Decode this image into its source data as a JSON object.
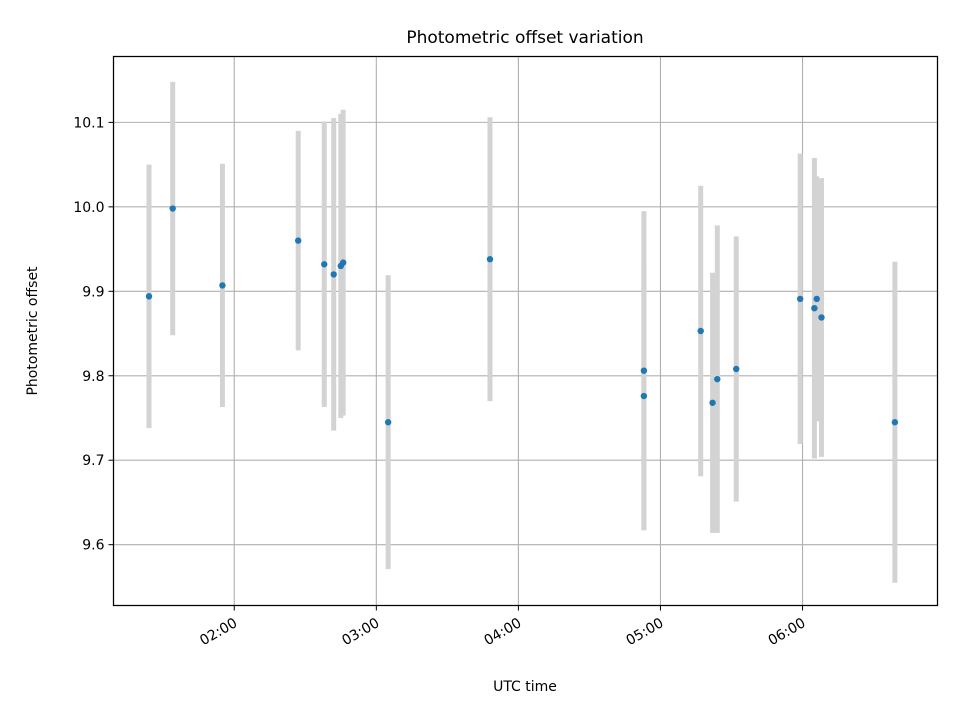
{
  "chart_data": {
    "type": "scatter",
    "title": "Photometric offset variation",
    "xlabel": "UTC time",
    "ylabel": "Photometric offset",
    "x_unit": "UTC time (HH:MM)",
    "xlim": [
      "01:09",
      "06:57"
    ],
    "ylim": [
      9.528,
      10.178
    ],
    "x_ticks": [
      "02:00",
      "03:00",
      "04:00",
      "05:00",
      "06:00"
    ],
    "y_ticks": [
      "9.6",
      "9.7",
      "9.8",
      "9.9",
      "10.0",
      "10.1"
    ],
    "grid": true,
    "legend": "none",
    "colors": {
      "points": "#1f77b4",
      "error_bars": "#d3d3d3",
      "grid": "#b0b0b0",
      "axes": "#000000"
    },
    "series": [
      {
        "points": [
          {
            "x": "01:24",
            "y": 9.894,
            "err": 0.156
          },
          {
            "x": "01:34",
            "y": 9.998,
            "err": 0.15
          },
          {
            "x": "01:55",
            "y": 9.907,
            "err": 0.144
          },
          {
            "x": "02:27",
            "y": 9.96,
            "err": 0.13
          },
          {
            "x": "02:38",
            "y": 9.932,
            "err": 0.169
          },
          {
            "x": "02:42",
            "y": 9.92,
            "err": 0.185
          },
          {
            "x": "02:45",
            "y": 9.93,
            "err": 0.18
          },
          {
            "x": "02:46",
            "y": 9.934,
            "err": 0.181
          },
          {
            "x": "03:05",
            "y": 9.745,
            "err": 0.174
          },
          {
            "x": "03:48",
            "y": 9.938,
            "err": 0.168
          },
          {
            "x": "04:53",
            "y": 9.806,
            "err": 0.189
          },
          {
            "x": "04:53",
            "y": 9.776,
            "err": 0.157
          },
          {
            "x": "05:17",
            "y": 9.853,
            "err": 0.172
          },
          {
            "x": "05:22",
            "y": 9.768,
            "err": 0.154
          },
          {
            "x": "05:24",
            "y": 9.796,
            "err": 0.182
          },
          {
            "x": "05:32",
            "y": 9.808,
            "err": 0.157
          },
          {
            "x": "05:59",
            "y": 9.891,
            "err": 0.172
          },
          {
            "x": "06:05",
            "y": 9.88,
            "err": 0.178
          },
          {
            "x": "06:06",
            "y": 9.891,
            "err": 0.145
          },
          {
            "x": "06:08",
            "y": 9.869,
            "err": 0.165
          },
          {
            "x": "06:39",
            "y": 9.745,
            "err": 0.19
          }
        ]
      }
    ]
  }
}
